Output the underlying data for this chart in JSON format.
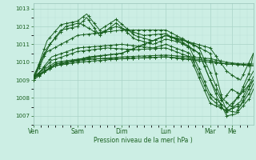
{
  "bg_color": "#cceee4",
  "line_color": "#1a6020",
  "grid_color_major": "#aad4c8",
  "grid_color_minor": "#bce0d8",
  "xlabel": "Pression niveau de la mer( hPa )",
  "ylim": [
    1006.5,
    1013.3
  ],
  "yticks": [
    1007,
    1008,
    1009,
    1010,
    1011,
    1012,
    1013
  ],
  "day_labels": [
    "Ven",
    "Sam",
    "Dim",
    "Lun",
    "Mar",
    "Me"
  ],
  "day_positions": [
    0,
    48,
    96,
    144,
    192,
    216
  ],
  "n_points": 240,
  "lw": 0.7,
  "marker_step": 6,
  "marker_size": 3.0
}
